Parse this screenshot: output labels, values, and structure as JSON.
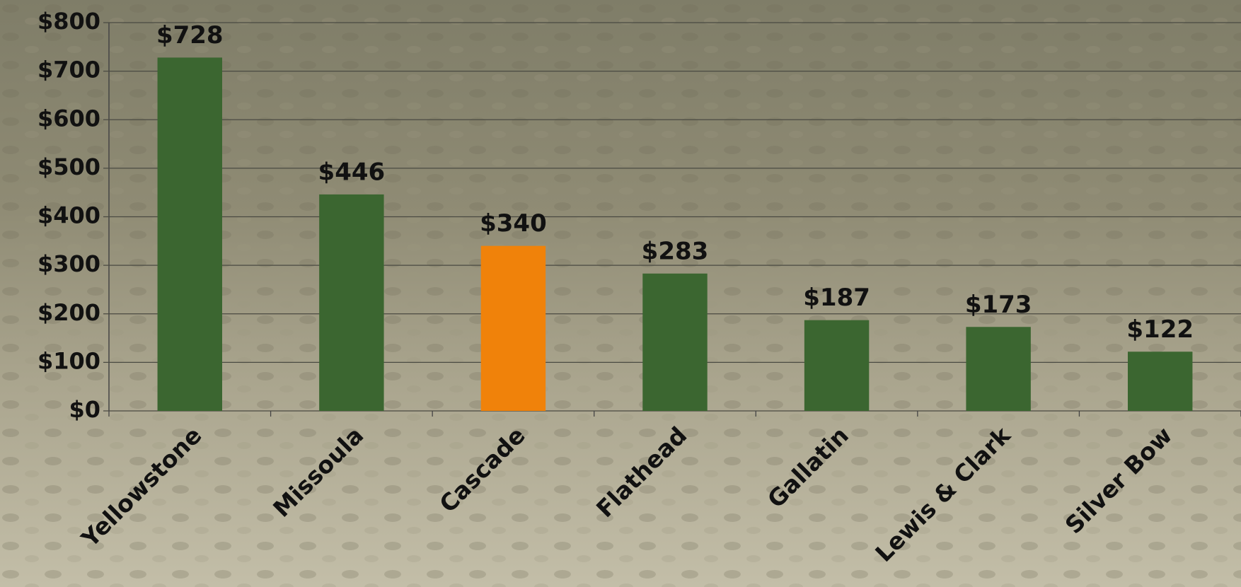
{
  "chart_data": {
    "type": "bar",
    "categories": [
      "Yellowstone",
      "Missoula",
      "Cascade",
      "Flathead",
      "Gallatin",
      "Lewis & Clark",
      "Silver Bow"
    ],
    "values": [
      728,
      446,
      340,
      283,
      187,
      173,
      122
    ],
    "value_labels": [
      "$728",
      "$446",
      "$340",
      "$283",
      "$187",
      "$173",
      "$122"
    ],
    "colors": [
      "#3b6630",
      "#3b6630",
      "#f0820a",
      "#3b6630",
      "#3b6630",
      "#3b6630",
      "#3b6630"
    ],
    "ylim": [
      0,
      800
    ],
    "yticks": [
      {
        "value": 0,
        "label": "$0"
      },
      {
        "value": 100,
        "label": "$100"
      },
      {
        "value": 200,
        "label": "$200"
      },
      {
        "value": 300,
        "label": "$300"
      },
      {
        "value": 400,
        "label": "$400"
      },
      {
        "value": 500,
        "label": "$500"
      },
      {
        "value": 600,
        "label": "$600"
      },
      {
        "value": 700,
        "label": "$700"
      },
      {
        "value": 800,
        "label": "$800"
      }
    ],
    "grid": true
  }
}
